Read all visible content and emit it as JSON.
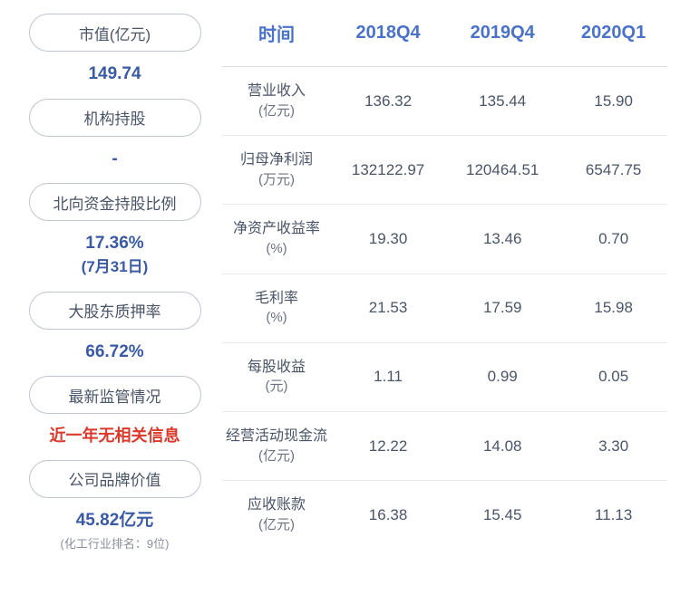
{
  "left": {
    "items": [
      {
        "label": "市值(亿元)",
        "value": "149.74",
        "color": "#3b5aa4"
      },
      {
        "label": "机构持股",
        "value": "-",
        "color": "#3b5aa4"
      },
      {
        "label": "北向资金持股比例",
        "value": "17.36%",
        "sub": "(7月31日)",
        "color": "#3b5aa4"
      },
      {
        "label": "大股东质押率",
        "value": "66.72%",
        "color": "#3b5aa4"
      },
      {
        "label": "最新监管情况",
        "value": "近一年无相关信息",
        "color": "#d93a2b"
      },
      {
        "label": "公司品牌价值",
        "value": "45.82亿元",
        "note": "(化工行业排名：9位)",
        "color": "#3b5aa4"
      }
    ]
  },
  "table": {
    "headers": [
      "时间",
      "2018Q4",
      "2019Q4",
      "2020Q1"
    ],
    "rows": [
      {
        "metric": "营业收入",
        "unit": "(亿元)",
        "values": [
          "136.32",
          "135.44",
          "15.90"
        ]
      },
      {
        "metric": "归母净利润",
        "unit": "(万元)",
        "values": [
          "132122.97",
          "120464.51",
          "6547.75"
        ]
      },
      {
        "metric": "净资产收益率",
        "unit": "(%)",
        "values": [
          "19.30",
          "13.46",
          "0.70"
        ]
      },
      {
        "metric": "毛利率",
        "unit": "(%)",
        "values": [
          "21.53",
          "17.59",
          "15.98"
        ]
      },
      {
        "metric": "每股收益",
        "unit": "(元)",
        "values": [
          "1.11",
          "0.99",
          "0.05"
        ]
      },
      {
        "metric": "经营活动现金流",
        "unit": "(亿元)",
        "values": [
          "12.22",
          "14.08",
          "3.30"
        ]
      },
      {
        "metric": "应收账款",
        "unit": "(亿元)",
        "values": [
          "16.38",
          "15.45",
          "11.13"
        ]
      }
    ]
  },
  "style": {
    "header_color": "#4a72c7",
    "text_color": "#4a5568",
    "value_color": "#3b5aa4",
    "alert_color": "#d93a2b",
    "border_color": "#d8dce4",
    "row_border_color": "#e8ebf0",
    "pill_border_color": "#bfc5d0",
    "background": "#ffffff"
  }
}
